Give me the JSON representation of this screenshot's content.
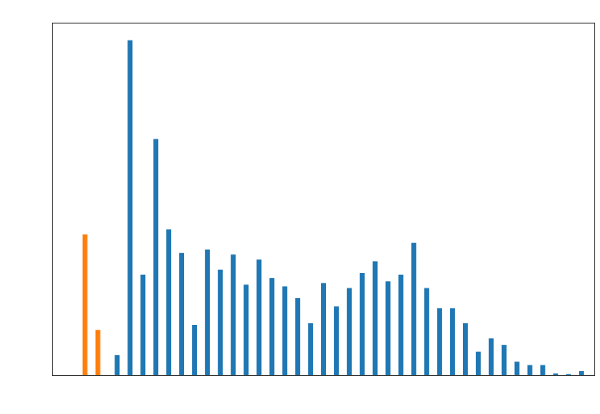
{
  "colors": {
    "series_blue": "#1f77b4",
    "series_orange": "#ff7f0e",
    "axes": "#000000",
    "background": "#ffffff"
  },
  "chart_data": {
    "type": "bar",
    "title": "",
    "xlabel": "",
    "ylabel": "",
    "grid": false,
    "legend": "none",
    "x_ticks_visible": false,
    "y_ticks_visible": false,
    "xlim": [
      0,
      42
    ],
    "ylim": [
      0,
      105
    ],
    "series": [
      {
        "color": "#ff7f0e",
        "x": [
          2.5,
          3.5
        ],
        "values": [
          42,
          13.5
        ]
      },
      {
        "color": "#1f77b4",
        "x": [
          5,
          6,
          7,
          8,
          9,
          10,
          11,
          12,
          13,
          14,
          15,
          16,
          17,
          18,
          19,
          20,
          21,
          22,
          23,
          24,
          25,
          26,
          27,
          28,
          29,
          30,
          31,
          32,
          33,
          34,
          35,
          36,
          37,
          38,
          39,
          40,
          41
        ],
        "values": [
          6,
          100,
          30,
          70.5,
          43.5,
          36.5,
          15,
          37.5,
          31.5,
          36,
          27,
          34.5,
          29,
          26.5,
          23,
          15.5,
          27.5,
          20.5,
          26,
          30.5,
          34,
          28,
          30,
          39.5,
          26,
          20,
          20,
          15.5,
          7,
          11,
          9,
          4,
          3,
          3,
          0.5,
          0.3,
          1.2
        ]
      }
    ]
  }
}
